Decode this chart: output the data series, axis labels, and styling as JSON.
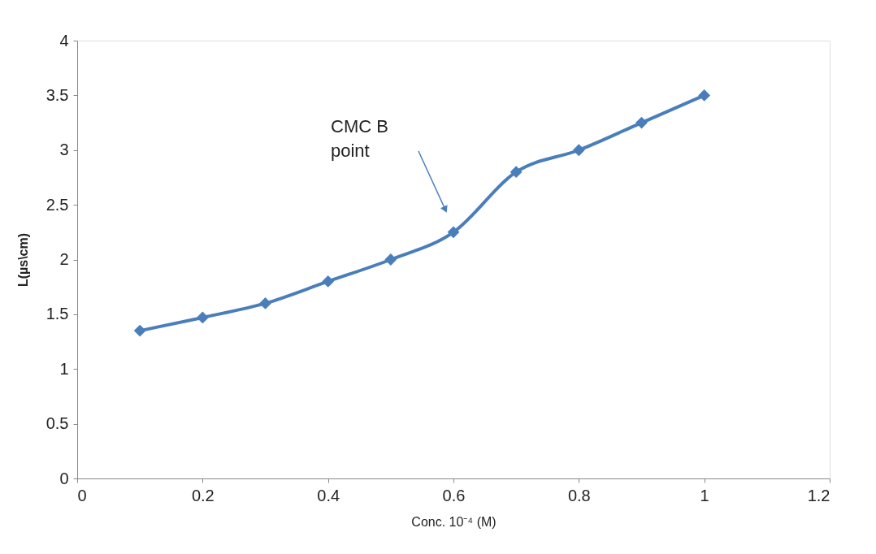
{
  "chart_data": {
    "type": "line",
    "xlabel": "Conc. 10⁻⁴ (M)",
    "ylabel": "L(µs\\cm)",
    "x": [
      0.1,
      0.2,
      0.3,
      0.4,
      0.5,
      0.6,
      0.7,
      0.8,
      0.9,
      1.0
    ],
    "series": [
      {
        "color": "#4a7ebb",
        "values": [
          1.35,
          1.47,
          1.6,
          1.8,
          2.0,
          2.25,
          2.8,
          3.0,
          3.25,
          3.5
        ]
      }
    ],
    "xlim": [
      0,
      1.2
    ],
    "xticks": [
      0,
      0.2,
      0.4,
      0.6,
      0.8,
      1,
      1.2
    ],
    "ylim": [
      0,
      4
    ],
    "yticks": [
      0,
      0.5,
      1,
      1.5,
      2,
      2.5,
      3,
      3.5,
      4
    ],
    "marker": "diamond",
    "line_style": "solid",
    "grid": false,
    "legend": false,
    "annotations": [
      "CMC B point"
    ]
  }
}
